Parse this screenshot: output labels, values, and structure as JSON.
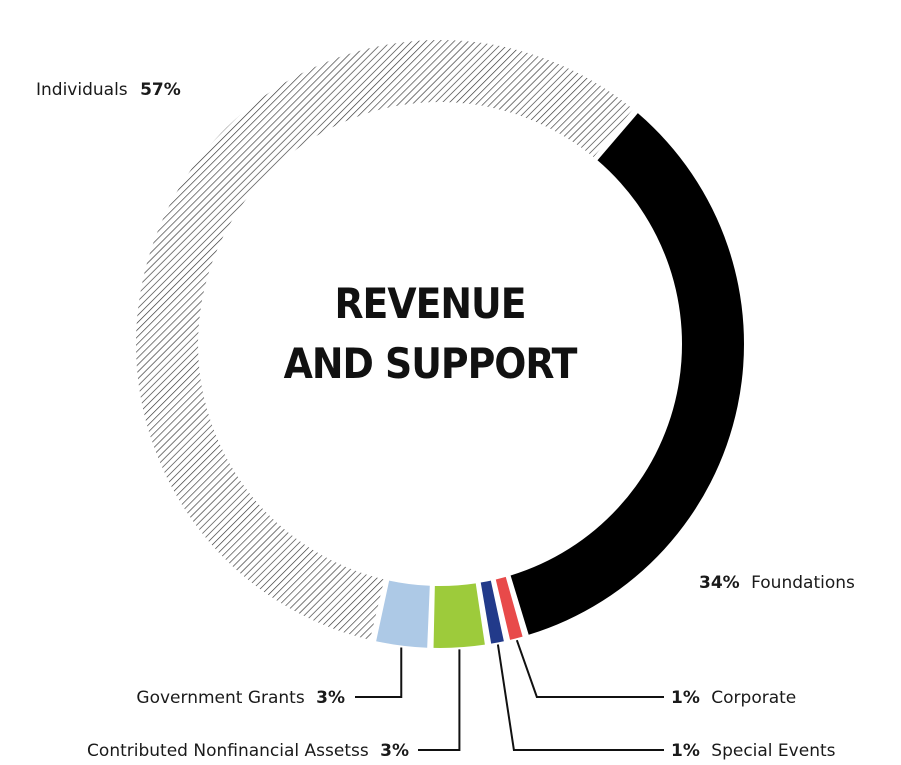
{
  "chart_data": {
    "type": "pie",
    "title_lines": [
      "REVENUE",
      "AND SUPPORT"
    ],
    "slices": [
      {
        "name": "Foundations",
        "value": 34,
        "pct_text": "34%",
        "color": "#000000"
      },
      {
        "name": "Corporate",
        "value": 1,
        "pct_text": "1%",
        "color": "#e84a4a"
      },
      {
        "name": "Special Events",
        "value": 1,
        "pct_text": "1%",
        "color": "#223a8a"
      },
      {
        "name": "Contributed Nonfinancial Assetss",
        "value": 3,
        "pct_text": "3%",
        "color": "#9dcb3b"
      },
      {
        "name": "Government Grants",
        "value": 3,
        "pct_text": "3%",
        "color": "#adc9e6"
      },
      {
        "name": "Individuals",
        "value": 57,
        "pct_text": "57%",
        "color": "#ffffff",
        "pattern": "diagonal-hatch",
        "pattern_color": "#333333"
      }
    ]
  }
}
